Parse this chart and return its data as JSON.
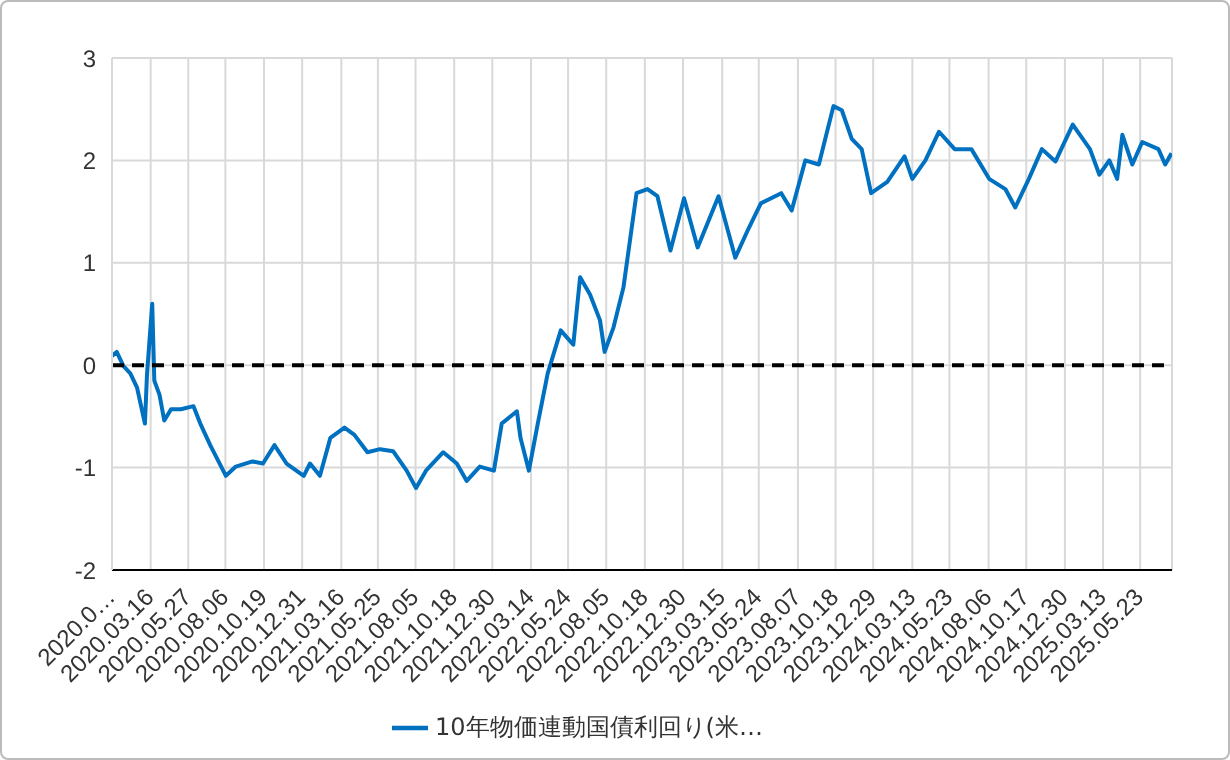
{
  "chart_data": {
    "type": "line",
    "xlim": [
      "2020-01-02",
      "2025-07-23"
    ],
    "xticks": [
      {
        "value": "2020-01-02",
        "label": "2020.0…"
      },
      {
        "value": "2020-03-16",
        "label": "2020.03.16"
      },
      {
        "value": "2020-05-27",
        "label": "2020.05.27"
      },
      {
        "value": "2020-08-06",
        "label": "2020.08.06"
      },
      {
        "value": "2020-10-19",
        "label": "2020.10.19"
      },
      {
        "value": "2020-12-31",
        "label": "2020.12.31"
      },
      {
        "value": "2021-03-16",
        "label": "2021.03.16"
      },
      {
        "value": "2021-05-25",
        "label": "2021.05.25"
      },
      {
        "value": "2021-08-05",
        "label": "2021.08.05"
      },
      {
        "value": "2021-10-18",
        "label": "2021.10.18"
      },
      {
        "value": "2021-12-30",
        "label": "2021.12.30"
      },
      {
        "value": "2022-03-14",
        "label": "2022.03.14"
      },
      {
        "value": "2022-05-24",
        "label": "2022.05.24"
      },
      {
        "value": "2022-08-05",
        "label": "2022.08.05"
      },
      {
        "value": "2022-10-18",
        "label": "2022.10.18"
      },
      {
        "value": "2022-12-30",
        "label": "2022.12.30"
      },
      {
        "value": "2023-03-15",
        "label": "2023.03.15"
      },
      {
        "value": "2023-05-24",
        "label": "2023.05.24"
      },
      {
        "value": "2023-08-07",
        "label": "2023.08.07"
      },
      {
        "value": "2023-10-18",
        "label": "2023.10.18"
      },
      {
        "value": "2023-12-29",
        "label": "2023.12.29"
      },
      {
        "value": "2024-03-13",
        "label": "2024.03.13"
      },
      {
        "value": "2024-05-23",
        "label": "2024.05.23"
      },
      {
        "value": "2024-08-06",
        "label": "2024.08.06"
      },
      {
        "value": "2024-10-17",
        "label": "2024.10.17"
      },
      {
        "value": "2024-12-30",
        "label": "2024.12.30"
      },
      {
        "value": "2025-03-13",
        "label": "2025.03.13"
      },
      {
        "value": "2025-05-23",
        "label": "2025.05.23"
      }
    ],
    "ylim": [
      -2,
      3
    ],
    "yticks": [
      -2,
      -1,
      0,
      1,
      2,
      3
    ],
    "grid": true,
    "legend": "bottom",
    "marker": "none",
    "line_style": "solid",
    "ref_lines": [
      {
        "axis": "y",
        "value": 0,
        "color": "#000000",
        "line_style": "dashed"
      }
    ],
    "series": [
      {
        "name": "10年物価連動国債利回り(米…",
        "color": "#0070c0",
        "x": [
          "2020-01-02",
          "2020-01-11",
          "2020-01-24",
          "2020-02-06",
          "2020-02-19",
          "2020-03-05",
          "2020-03-09",
          "2020-03-19",
          "2020-03-23",
          "2020-04-02",
          "2020-04-11",
          "2020-04-24",
          "2020-05-13",
          "2020-06-06",
          "2020-06-19",
          "2020-07-08",
          "2020-08-07",
          "2020-08-26",
          "2020-09-27",
          "2020-10-17",
          "2020-11-08",
          "2020-12-01",
          "2021-01-03",
          "2021-01-15",
          "2021-02-03",
          "2021-02-23",
          "2021-03-22",
          "2021-04-10",
          "2021-05-05",
          "2021-05-29",
          "2021-06-23",
          "2021-07-19",
          "2021-08-06",
          "2021-08-25",
          "2021-09-27",
          "2021-10-23",
          "2021-11-11",
          "2021-12-06",
          "2022-01-02",
          "2022-01-17",
          "2022-02-15",
          "2022-02-22",
          "2022-03-10",
          "2022-03-27",
          "2022-04-15",
          "2022-05-10",
          "2022-06-03",
          "2022-06-16",
          "2022-07-05",
          "2022-07-24",
          "2022-08-02",
          "2022-08-19",
          "2022-09-07",
          "2022-10-02",
          "2022-10-23",
          "2022-11-11",
          "2022-12-06",
          "2023-01-01",
          "2023-01-27",
          "2023-03-08",
          "2023-04-09",
          "2023-05-04",
          "2023-05-28",
          "2023-07-06",
          "2023-07-26",
          "2023-08-21",
          "2023-09-16",
          "2023-10-14",
          "2023-10-30",
          "2023-11-18",
          "2023-12-07",
          "2023-12-25",
          "2024-01-25",
          "2024-02-27",
          "2024-03-13",
          "2024-04-07",
          "2024-05-03",
          "2024-06-02",
          "2024-07-04",
          "2024-08-07",
          "2024-09-07",
          "2024-09-26",
          "2024-10-22",
          "2024-11-16",
          "2024-12-12",
          "2025-01-14",
          "2025-02-16",
          "2025-03-06",
          "2025-03-25",
          "2025-04-09",
          "2025-04-19",
          "2025-05-08",
          "2025-05-27",
          "2025-06-27",
          "2025-07-10",
          "2025-07-22"
        ],
        "values": [
          0.09,
          0.13,
          -0.01,
          -0.08,
          -0.22,
          -0.57,
          -0.09,
          0.6,
          -0.15,
          -0.29,
          -0.54,
          -0.43,
          -0.43,
          -0.4,
          -0.57,
          -0.78,
          -1.08,
          -0.99,
          -0.94,
          -0.96,
          -0.78,
          -0.96,
          -1.08,
          -0.96,
          -1.08,
          -0.71,
          -0.61,
          -0.68,
          -0.85,
          -0.82,
          -0.84,
          -1.03,
          -1.2,
          -1.03,
          -0.85,
          -0.96,
          -1.13,
          -0.99,
          -1.03,
          -0.57,
          -0.45,
          -0.71,
          -1.03,
          -0.57,
          -0.08,
          0.34,
          0.2,
          0.86,
          0.69,
          0.44,
          0.13,
          0.37,
          0.76,
          1.68,
          1.72,
          1.65,
          1.12,
          1.63,
          1.15,
          1.65,
          1.05,
          1.33,
          1.58,
          1.68,
          1.51,
          2.0,
          1.96,
          2.53,
          2.49,
          2.21,
          2.11,
          1.68,
          1.79,
          2.04,
          1.82,
          2.0,
          2.28,
          2.11,
          2.11,
          1.82,
          1.72,
          1.54,
          1.82,
          2.11,
          1.99,
          2.35,
          2.11,
          1.86,
          2.0,
          1.82,
          2.25,
          1.96,
          2.18,
          2.11,
          1.96,
          2.07
        ]
      }
    ]
  }
}
